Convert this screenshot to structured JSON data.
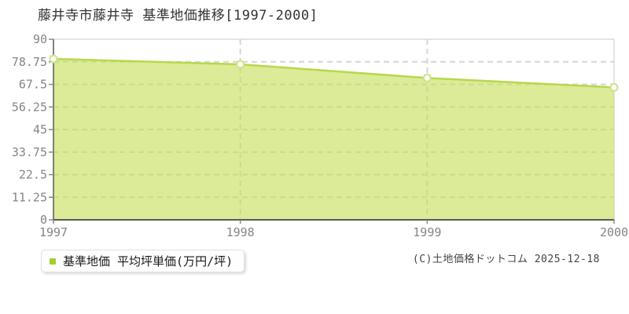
{
  "title": "藤井寺市藤井寺 基準地価推移[1997-2000]",
  "legend": {
    "label": "基準地価 平均坪単価(万円/坪)",
    "marker_color": "#a3d02c"
  },
  "copyright": "(C)土地価格ドットコム 2025-12-18",
  "chart_data": {
    "type": "area",
    "title": "藤井寺市藤井寺 基準地価推移[1997-2000]",
    "categories": [
      "1997",
      "1998",
      "1999",
      "2000"
    ],
    "series": [
      {
        "name": "基準地価 平均坪単価(万円/坪)",
        "values": [
          80.2,
          77.5,
          70.7,
          66.0
        ]
      }
    ],
    "unit": "万円/坪",
    "xlabel": "",
    "ylabel": "",
    "ylim": [
      0,
      90
    ],
    "yticks": [
      90,
      78.75,
      67.5,
      56.25,
      45,
      33.75,
      22.5,
      11.25,
      0
    ],
    "grid": true,
    "legend_position": "bottom-left",
    "colors": {
      "line": "#b7d84b",
      "fill": "rgba(197,222,88,0.62)",
      "marker_fill": "#fbfdf4",
      "marker_stroke": "#cde28e",
      "axis": "#5a5a5a",
      "gridline": "#d6d6d6",
      "border": "#dcdcdc",
      "tick_label": "#858585",
      "title_color": "#333333"
    }
  }
}
